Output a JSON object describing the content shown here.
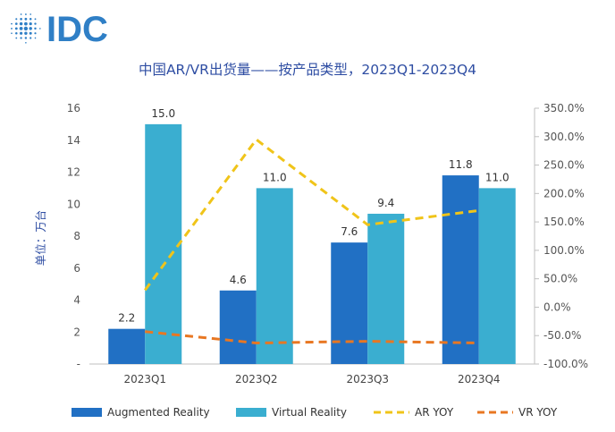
{
  "logo": {
    "text": "IDC"
  },
  "chart_data": {
    "type": "bar",
    "title": "中国AR/VR出货量——按产品类型，2023Q1-2023Q4",
    "ylabel": "单位：万台",
    "categories": [
      "2023Q1",
      "2023Q2",
      "2023Q3",
      "2023Q4"
    ],
    "ylim": [
      0,
      16
    ],
    "y_ticks": [
      "-",
      "2",
      "4",
      "6",
      "8",
      "10",
      "12",
      "14",
      "16"
    ],
    "y2lim": [
      -100,
      350
    ],
    "y2_ticks": [
      "-100.0%",
      "-50.0%",
      "0.0%",
      "50.0%",
      "100.0%",
      "150.0%",
      "200.0%",
      "250.0%",
      "300.0%",
      "350.0%"
    ],
    "series": [
      {
        "name": "Augmented Reality",
        "kind": "bar",
        "color": "#2170c4",
        "values": [
          2.2,
          4.6,
          7.6,
          11.8
        ],
        "labels": [
          "2.2",
          "4.6",
          "7.6",
          "11.8"
        ]
      },
      {
        "name": "Virtual Reality",
        "kind": "bar",
        "color": "#3aaed0",
        "values": [
          15.0,
          11.0,
          9.4,
          11.0
        ],
        "labels": [
          "15.0",
          "11.0",
          "9.4",
          "11.0"
        ]
      },
      {
        "name": "AR YOY",
        "kind": "line",
        "axis": "right",
        "dash": true,
        "color": "#f0c419",
        "values": [
          30,
          295,
          145,
          170
        ]
      },
      {
        "name": "VR YOY",
        "kind": "line",
        "axis": "right",
        "dash": true,
        "color": "#e87722",
        "values": [
          -43,
          -63,
          -60,
          -63
        ]
      }
    ],
    "grid": false,
    "legend": "bottom"
  }
}
